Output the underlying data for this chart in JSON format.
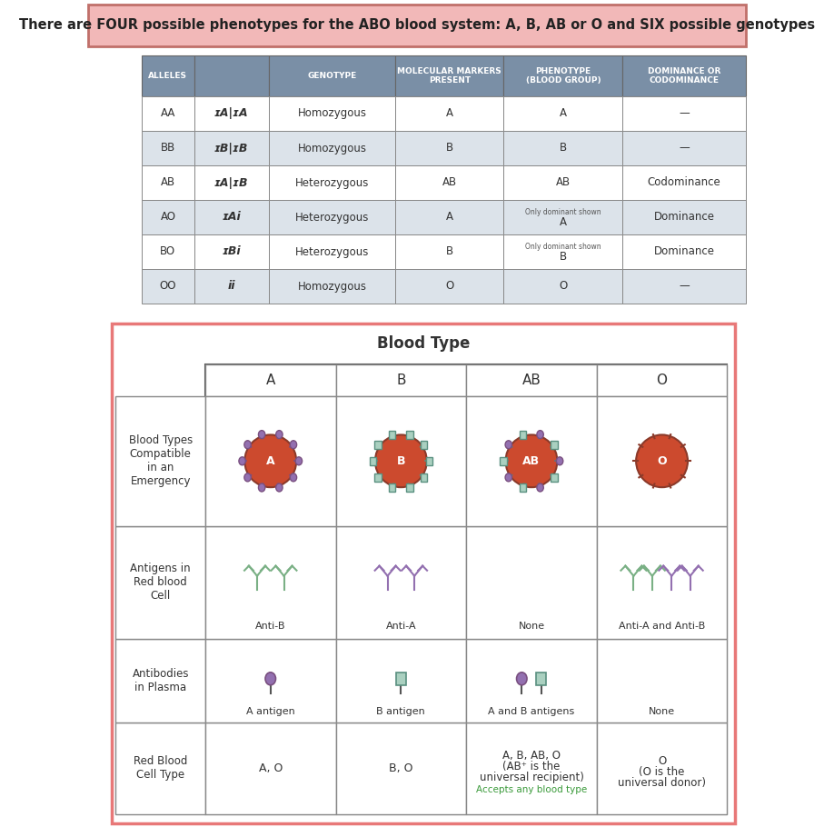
{
  "title_text": "There are FOUR possible phenotypes for the ABO blood system: A, B, AB or O and SIX possible genotypes",
  "title_bg": "#f2b8b8",
  "title_border": "#c0706a",
  "table1_header_bg": "#7a8fa6",
  "table1_row_bg1": "#ffffff",
  "table1_row_bg2": "#dce3ea",
  "table1_rows": [
    [
      "AA",
      "Homozygous",
      "A",
      "A",
      "—"
    ],
    [
      "BB",
      "Homozygous",
      "B",
      "B",
      "—"
    ],
    [
      "AB",
      "Heterozygous",
      "AB",
      "AB",
      "Codominance"
    ],
    [
      "AO",
      "Heterozygous",
      "A",
      "Only dominant shown\nA",
      "Dominance"
    ],
    [
      "BO",
      "Heterozygous",
      "B",
      "Only dominant shown\nB",
      "Dominance"
    ],
    [
      "OO",
      "Homozygous",
      "O",
      "O",
      "—"
    ]
  ],
  "table1_notation": [
    "ɪA|ɪA",
    "ɪB|ɪB",
    "ɪA|ɪB",
    "ɪAi",
    "ɪBi",
    "ii"
  ],
  "blood_type_title": "Blood Type",
  "blood_type_cols": [
    "A",
    "B",
    "AB",
    "O"
  ],
  "row_labels": [
    "Red Blood\nCell Type",
    "Antibodies\nin Plasma",
    "Antigens in\nRed blood\nCell",
    "Blood Types\nCompatible\nin an\nEmergency"
  ],
  "antibody_labels": [
    "Anti-B",
    "Anti-A",
    "None",
    "Anti-A and Anti-B"
  ],
  "antigen_labels": [
    "A antigen",
    "B antigen",
    "A and B antigens",
    "None"
  ],
  "compatible_labels": [
    "A, O",
    "B, O",
    "A, B, AB, O\n(AB⁺ is the\nuniversal recipient)",
    "O\n(O is the\nuniversal donor)"
  ],
  "compatible_note": "Accepts any blood type",
  "cell_color": "#cc4a2e",
  "antigen_A_color": "#9370b0",
  "antigen_B_color": "#7ab0a0",
  "antibody_green": "#7ab085",
  "antibody_purple": "#9370b0",
  "table2_border": "#e87878",
  "spike_color": "#8B3A2A"
}
